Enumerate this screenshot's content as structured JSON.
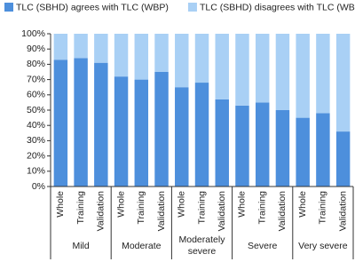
{
  "chart_data": {
    "type": "stacked_bar",
    "categories": [
      "Whole",
      "Training",
      "Validation",
      "Whole",
      "Training",
      "Validation",
      "Whole",
      "Training",
      "Validation",
      "Whole",
      "Training",
      "Validation",
      "Whole",
      "Training",
      "Validation"
    ],
    "groups": [
      "Mild",
      "Moderate",
      "Moderately severe",
      "Severe",
      "Very severe"
    ],
    "series": [
      {
        "name": "TLC (SBHD) agrees with TLC (WBP)",
        "color": "#4d8fdc",
        "values": [
          83,
          84,
          81,
          72,
          70,
          75,
          65,
          68,
          57,
          53,
          55,
          50,
          45,
          48,
          36
        ]
      },
      {
        "name": "TLC (SBHD) disagrees with TLC (WBP)",
        "color": "#a9d0f5",
        "values": [
          17,
          16,
          19,
          28,
          30,
          25,
          35,
          32,
          43,
          47,
          45,
          50,
          55,
          52,
          64
        ]
      }
    ],
    "ylim": [
      0,
      100
    ],
    "yticks": [
      {
        "value": 0,
        "label": "0%"
      },
      {
        "value": 10,
        "label": "10%"
      },
      {
        "value": 20,
        "label": "20%"
      },
      {
        "value": 30,
        "label": "30%"
      },
      {
        "value": 40,
        "label": "40%"
      },
      {
        "value": 50,
        "label": "50%"
      },
      {
        "value": 60,
        "label": "60%"
      },
      {
        "value": 70,
        "label": "70%"
      },
      {
        "value": 80,
        "label": "80%"
      },
      {
        "value": 90,
        "label": "90%"
      },
      {
        "value": 100,
        "label": "100%"
      }
    ],
    "legend": "top"
  }
}
